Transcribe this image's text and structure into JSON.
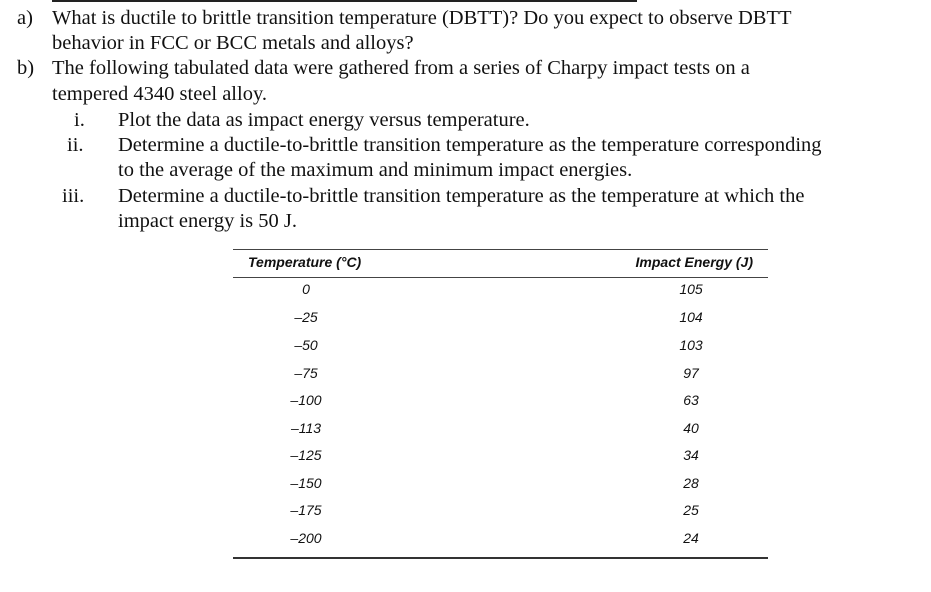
{
  "question": {
    "part_a": {
      "marker": "a)",
      "lines": [
        "What is ductile to brittle transition temperature (DBTT)? Do you expect to observe DBTT",
        "behavior in FCC or BCC metals and alloys?"
      ]
    },
    "part_b": {
      "marker": "b)",
      "lines": [
        "The following tabulated data were gathered from a series of Charpy impact tests on a",
        "tempered 4340 steel alloy."
      ],
      "items": [
        {
          "marker": "i.",
          "lines": [
            "Plot the data as impact energy versus temperature."
          ]
        },
        {
          "marker": "ii.",
          "lines": [
            "Determine a ductile-to-brittle transition temperature as the temperature corresponding",
            "to the average of the maximum and minimum impact energies."
          ]
        },
        {
          "marker": "iii.",
          "lines": [
            "Determine a ductile-to-brittle transition temperature as the temperature at which the",
            "impact energy is 50 J."
          ]
        }
      ]
    }
  },
  "table": {
    "headers": [
      "Temperature (°C)",
      "Impact Energy (J)"
    ],
    "rows": [
      [
        "0",
        "105"
      ],
      [
        "–25",
        "104"
      ],
      [
        "–50",
        "103"
      ],
      [
        "–75",
        "97"
      ],
      [
        "–100",
        "63"
      ],
      [
        "–113",
        "40"
      ],
      [
        "–125",
        "34"
      ],
      [
        "–150",
        "28"
      ],
      [
        "–175",
        "25"
      ],
      [
        "–200",
        "24"
      ]
    ]
  }
}
